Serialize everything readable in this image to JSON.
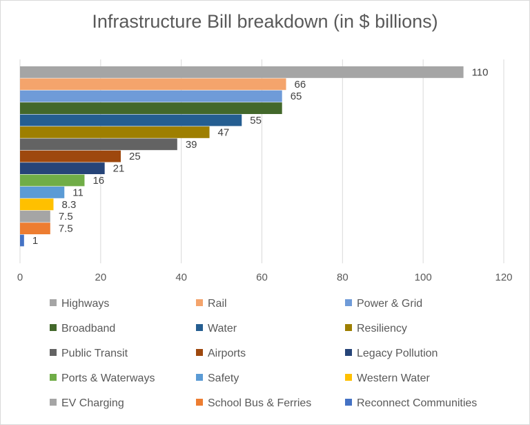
{
  "chart_data": {
    "type": "bar",
    "orientation": "horizontal",
    "title": "Infrastructure Bill breakdown (in $ billions)",
    "xlabel": "",
    "ylabel": "",
    "xlim": [
      0,
      120
    ],
    "x_ticks": [
      "0",
      "20",
      "40",
      "60",
      "80",
      "100",
      "120"
    ],
    "grid": true,
    "legend_position": "bottom",
    "categories": [
      "Highways",
      "Rail",
      "Power & Grid",
      "Broadband",
      "Water",
      "Resiliency",
      "Public Transit",
      "Airports",
      "Legacy Pollution",
      "Ports & Waterways",
      "Safety",
      "Western Water",
      "EV Charging",
      "School Bus & Ferries",
      "Reconnect Communities"
    ],
    "values": [
      110,
      66,
      65,
      65,
      55,
      47,
      39,
      25,
      21,
      16,
      11,
      8.3,
      7.5,
      7.5,
      1
    ],
    "data_labels": [
      "110",
      "66",
      "65",
      "",
      "55",
      "47",
      "39",
      "25",
      "21",
      "16",
      "11",
      "8.3",
      "7.5",
      "7.5",
      "1"
    ],
    "colors": [
      "#a5a5a5",
      "#f4a46c",
      "#6f9bd8",
      "#43682b",
      "#255e91",
      "#9e7f00",
      "#636363",
      "#9e480e",
      "#264478",
      "#70ad47",
      "#5b9bd5",
      "#ffc000",
      "#a5a5a5",
      "#ed7d31",
      "#4472c4"
    ]
  }
}
